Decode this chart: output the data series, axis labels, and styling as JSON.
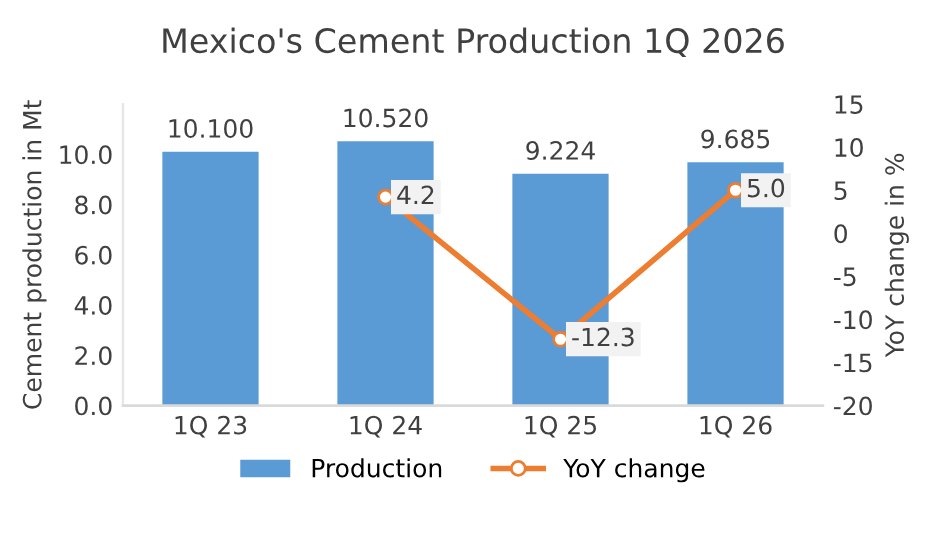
{
  "chart_data": {
    "type": "bar",
    "title": "Mexico's Cement Production 1Q 2026",
    "ylabel": "Cement production in Mt",
    "y2label": "YoY change in %",
    "categories": [
      "1Q 23",
      "1Q 24",
      "1Q 25",
      "1Q 26"
    ],
    "series": [
      {
        "name": "Production",
        "color": "#5b9bd5",
        "values": [
          10.1,
          10.52,
          9.224,
          9.685
        ],
        "value_labels": [
          "10.100",
          "10.520",
          "9.224",
          "9.685"
        ]
      },
      {
        "name": "YoY change",
        "type": "line",
        "axis": "y2",
        "color": "#ed7d31",
        "values": [
          null,
          4.2,
          -12.3,
          5.0
        ],
        "value_labels": [
          null,
          "4.2",
          "-12.3",
          "5.0"
        ]
      }
    ],
    "ylim": [
      0,
      12
    ],
    "yticks": [
      {
        "value": 0,
        "label": "0.0"
      },
      {
        "value": 2,
        "label": "2.0"
      },
      {
        "value": 4,
        "label": "4.0"
      },
      {
        "value": 6,
        "label": "6.0"
      },
      {
        "value": 8,
        "label": "8.0"
      },
      {
        "value": 10,
        "label": "10.0"
      }
    ],
    "y2lim": [
      -20,
      15
    ],
    "y2ticks": [
      -20,
      -15,
      -10,
      -5,
      0,
      5,
      10,
      15
    ],
    "grid": false,
    "legend": "bottom",
    "marker": "circle",
    "line_style": "solid"
  }
}
